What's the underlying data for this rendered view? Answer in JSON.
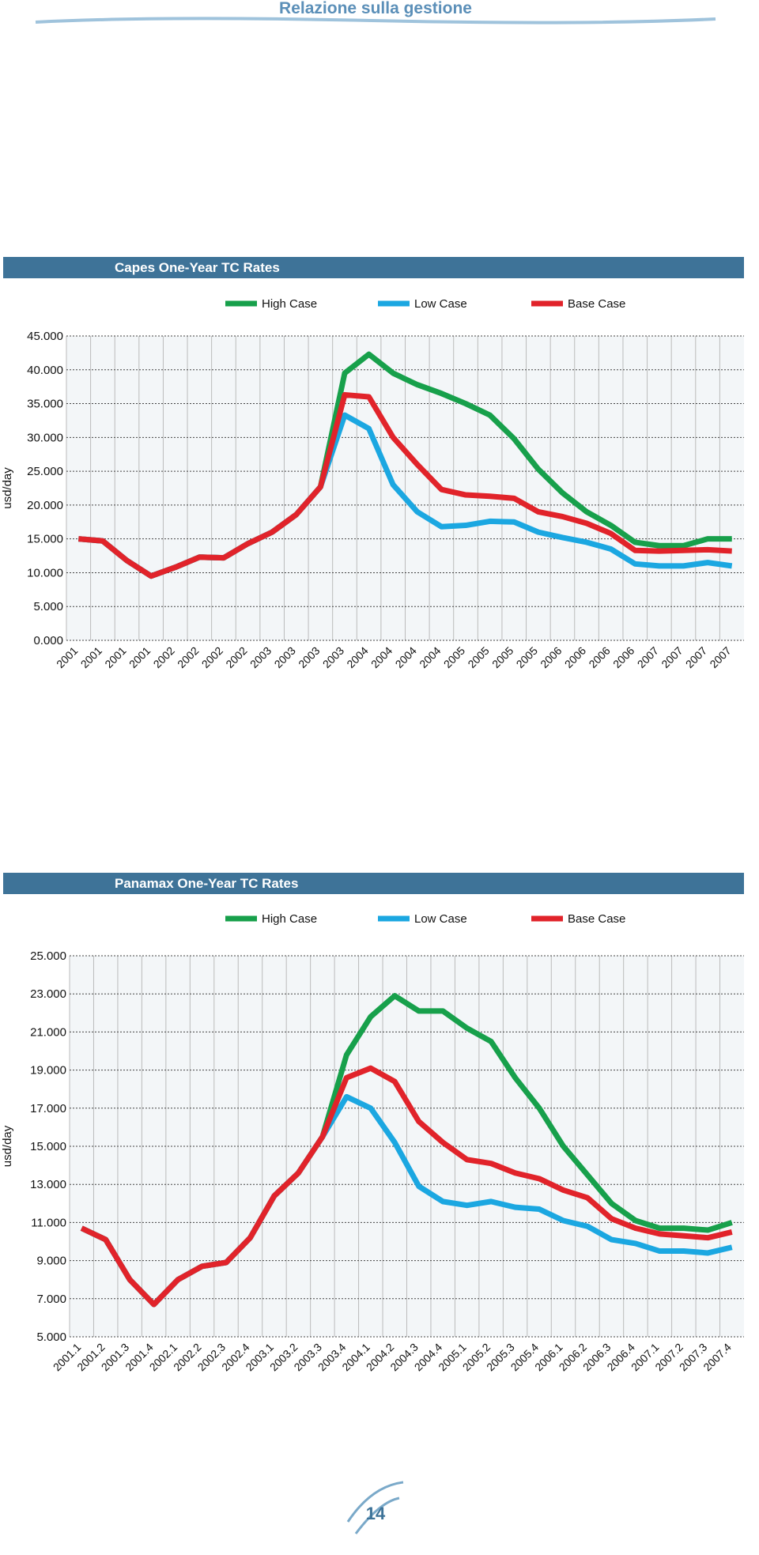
{
  "header": {
    "title": "Relazione sulla gestione"
  },
  "page_number": "14",
  "chart_data": [
    {
      "type": "line",
      "title": "Capes One-Year TC Rates",
      "y_label": "usd/day",
      "categories": [
        "2001",
        "2001",
        "2001",
        "2001",
        "2002",
        "2002",
        "2002",
        "2002",
        "2003",
        "2003",
        "2003",
        "2003",
        "2004",
        "2004",
        "2004",
        "2004",
        "2005",
        "2005",
        "2005",
        "2005",
        "2006",
        "2006",
        "2006",
        "2006",
        "2007",
        "2007",
        "2007",
        "2007"
      ],
      "series": [
        {
          "name": "High Case",
          "color": "#17a04b",
          "values": [
            15000,
            14700,
            11800,
            9500,
            10800,
            12300,
            12200,
            14300,
            16000,
            18600,
            22700,
            39500,
            42300,
            39500,
            37800,
            36500,
            35000,
            33300,
            29800,
            25300,
            21800,
            19000,
            17000,
            14500,
            14000,
            14000,
            15000,
            15000
          ]
        },
        {
          "name": "Low Case",
          "color": "#1ba7e1",
          "values": [
            15000,
            14700,
            11800,
            9500,
            10800,
            12300,
            12200,
            14300,
            16000,
            18600,
            22700,
            33300,
            31300,
            23000,
            19000,
            16800,
            17000,
            17600,
            17500,
            16000,
            15200,
            14500,
            13500,
            11300,
            11000,
            11000,
            11500,
            11000
          ]
        },
        {
          "name": "Base Case",
          "color": "#e1232a",
          "values": [
            15000,
            14700,
            11800,
            9500,
            10800,
            12300,
            12200,
            14300,
            16000,
            18600,
            22700,
            36300,
            36000,
            30000,
            26000,
            22300,
            21500,
            21300,
            21000,
            19000,
            18300,
            17300,
            15800,
            13300,
            13200,
            13300,
            13400,
            13200
          ]
        }
      ],
      "ylim": [
        0,
        45000
      ],
      "yticks": [
        {
          "value": 0,
          "label": "0.000"
        },
        {
          "value": 5000,
          "label": "5.000"
        },
        {
          "value": 10000,
          "label": "10.000"
        },
        {
          "value": 15000,
          "label": "15.000"
        },
        {
          "value": 20000,
          "label": "20.000"
        },
        {
          "value": 25000,
          "label": "25.000"
        },
        {
          "value": 30000,
          "label": "30.000"
        },
        {
          "value": 35000,
          "label": "35.000"
        },
        {
          "value": 40000,
          "label": "40.000"
        },
        {
          "value": 45000,
          "label": "45.000"
        }
      ],
      "grid": true,
      "legend": "top"
    },
    {
      "type": "line",
      "title": "Panamax One-Year TC Rates",
      "y_label": "usd/day",
      "categories": [
        "2001.1",
        "2001.2",
        "2001.3",
        "2001.4",
        "2002.1",
        "2002.2",
        "2002.3",
        "2002.4",
        "2003.1",
        "2003.2",
        "2003.3",
        "2003.4",
        "2004.1",
        "2004.2",
        "2004.3",
        "2004.4",
        "2005.1",
        "2005.2",
        "2005.3",
        "2005.4",
        "2006.1",
        "2006.2",
        "2006.3",
        "2006.4",
        "2007.1",
        "2007.2",
        "2007.3",
        "2007.4"
      ],
      "series": [
        {
          "name": "High Case",
          "color": "#17a04b",
          "values": [
            10700,
            10100,
            8000,
            6700,
            8000,
            8700,
            8900,
            10200,
            12400,
            13600,
            15500,
            19800,
            21800,
            22900,
            22100,
            22100,
            21200,
            20500,
            18600,
            17000,
            15000,
            13500,
            12000,
            11100,
            10700,
            10700,
            10600,
            11000
          ]
        },
        {
          "name": "Low Case",
          "color": "#1ba7e1",
          "values": [
            10700,
            10100,
            8000,
            6700,
            8000,
            8700,
            8900,
            10200,
            12400,
            13600,
            15500,
            17600,
            17000,
            15200,
            12900,
            12100,
            11900,
            12100,
            11800,
            11700,
            11100,
            10800,
            10100,
            9900,
            9500,
            9500,
            9400,
            9700
          ]
        },
        {
          "name": "Base Case",
          "color": "#e1232a",
          "values": [
            10700,
            10100,
            8000,
            6700,
            8000,
            8700,
            8900,
            10200,
            12400,
            13600,
            15500,
            18600,
            19100,
            18400,
            16300,
            15200,
            14300,
            14100,
            13600,
            13300,
            12700,
            12300,
            11200,
            10700,
            10400,
            10300,
            10200,
            10500
          ]
        }
      ],
      "ylim": [
        5000,
        25000
      ],
      "yticks": [
        {
          "value": 5000,
          "label": "5.000"
        },
        {
          "value": 7000,
          "label": "7.000"
        },
        {
          "value": 9000,
          "label": "9.000"
        },
        {
          "value": 11000,
          "label": "11.000"
        },
        {
          "value": 13000,
          "label": "13.000"
        },
        {
          "value": 15000,
          "label": "15.000"
        },
        {
          "value": 17000,
          "label": "17.000"
        },
        {
          "value": 19000,
          "label": "19.000"
        },
        {
          "value": 21000,
          "label": "21.000"
        },
        {
          "value": 23000,
          "label": "23.000"
        },
        {
          "value": 25000,
          "label": "25.000"
        }
      ],
      "grid": true,
      "legend": "top"
    }
  ]
}
